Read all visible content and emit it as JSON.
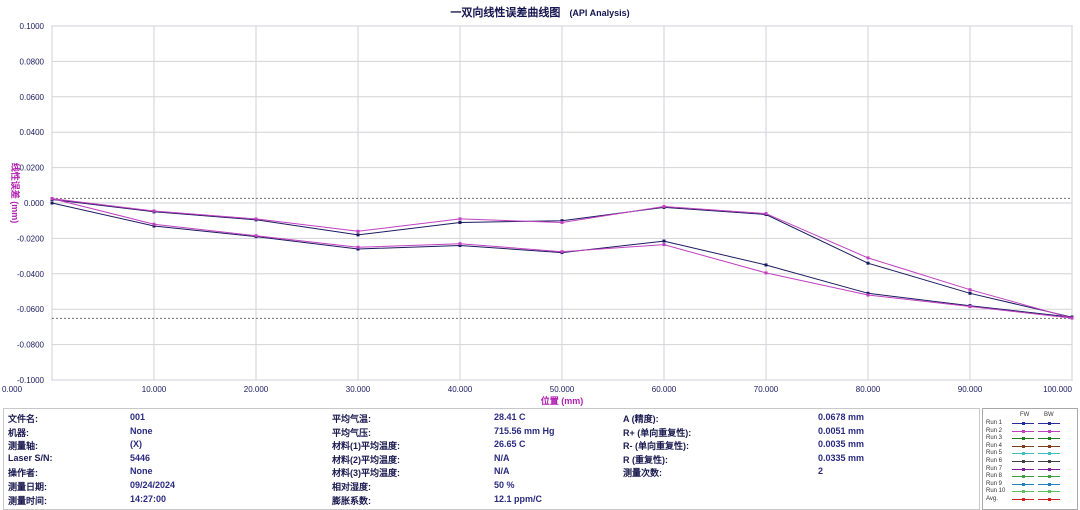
{
  "title": "一双向线性误差曲线图",
  "subtitle": "(API Analysis)",
  "chart_data": {
    "type": "line",
    "xlabel": "位置 (mm)",
    "ylabel": "线性误差 (mm)",
    "xlim": [
      0,
      100
    ],
    "ylim": [
      -0.1,
      0.1
    ],
    "xticks": [
      "0.000",
      "10.000",
      "20.000",
      "30.000",
      "40.000",
      "50.000",
      "60.000",
      "70.000",
      "80.000",
      "90.000",
      "100.000"
    ],
    "yticks": [
      "0.1000",
      "0.0800",
      "0.0600",
      "0.0400",
      "0.0200",
      "0.000",
      "-0.0200",
      "-0.0400",
      "-0.0600",
      "-0.0800",
      "-0.1000"
    ],
    "limit_lines": [
      0.0026,
      -0.0652
    ],
    "grid": true,
    "x": [
      0,
      10,
      20,
      30,
      40,
      50,
      60,
      70,
      80,
      90,
      100
    ],
    "series": [
      {
        "name": "Run 1 FW",
        "color": "#1a1a60",
        "values": [
          0.0,
          -0.013,
          -0.019,
          -0.026,
          -0.024,
          -0.028,
          -0.0215,
          -0.035,
          -0.051,
          -0.058,
          -0.0645
        ]
      },
      {
        "name": "Run 1 BW",
        "color": "#1a1a60",
        "values": [
          0.002,
          -0.005,
          -0.0095,
          -0.018,
          -0.011,
          -0.01,
          -0.0025,
          -0.0065,
          -0.034,
          -0.051,
          -0.0645
        ]
      },
      {
        "name": "Run 2 FW",
        "color": "#c040c0",
        "values": [
          0.0025,
          -0.012,
          -0.0185,
          -0.025,
          -0.023,
          -0.0275,
          -0.0235,
          -0.0395,
          -0.052,
          -0.0585,
          -0.065
        ]
      },
      {
        "name": "Run 2 BW",
        "color": "#c040c0",
        "values": [
          0.0025,
          -0.0045,
          -0.009,
          -0.016,
          -0.009,
          -0.011,
          -0.002,
          -0.006,
          -0.031,
          -0.049,
          -0.065
        ]
      }
    ]
  },
  "info": {
    "col1": [
      {
        "label": "文件名:",
        "value": "001"
      },
      {
        "label": "机器:",
        "value": "None"
      },
      {
        "label": "测量轴:",
        "value": "(X)"
      },
      {
        "label": "Laser S/N:",
        "value": "5446"
      },
      {
        "label": "操作者:",
        "value": "None"
      },
      {
        "label": "测量日期:",
        "value": "09/24/2024"
      },
      {
        "label": "测量时间:",
        "value": "14:27:00"
      }
    ],
    "col2": [
      {
        "label": "平均气温:",
        "value": "28.41 C"
      },
      {
        "label": "平均气压:",
        "value": "715.56 mm Hg"
      },
      {
        "label": "材料(1)平均温度:",
        "value": "26.65 C"
      },
      {
        "label": "材料(2)平均温度:",
        "value": "N/A"
      },
      {
        "label": "材料(3)平均温度:",
        "value": "N/A"
      },
      {
        "label": "相对湿度:",
        "value": "50 %"
      },
      {
        "label": "膨胀系数:",
        "value": "12.1 ppm/C"
      }
    ],
    "col3": [
      {
        "label": "A (精度):",
        "value": "0.0678 mm"
      },
      {
        "label": "R+ (单向重复性):",
        "value": "0.0051 mm"
      },
      {
        "label": "R- (单向重复性):",
        "value": "0.0035 mm"
      },
      {
        "label": "R (重复性):",
        "value": "0.0335 mm"
      },
      {
        "label": "测量次数:",
        "value": "2"
      }
    ]
  },
  "legend": {
    "fw_label": "FW",
    "bw_label": "BW",
    "rows": [
      {
        "name": "Run 1",
        "color": "#2a2aa0"
      },
      {
        "name": "Run 2",
        "color": "#c040c0"
      },
      {
        "name": "Run 3",
        "color": "#208020"
      },
      {
        "name": "Run 4",
        "color": "#804020"
      },
      {
        "name": "Run 5",
        "color": "#40c0c0"
      },
      {
        "name": "Run 6",
        "color": "#404040"
      },
      {
        "name": "Run 7",
        "color": "#8020a0"
      },
      {
        "name": "Run 8",
        "color": "#40a040"
      },
      {
        "name": "Run 9",
        "color": "#2080c0"
      },
      {
        "name": "Run 10",
        "color": "#60c060"
      },
      {
        "name": "Avg.",
        "color": "#d02020"
      }
    ]
  }
}
